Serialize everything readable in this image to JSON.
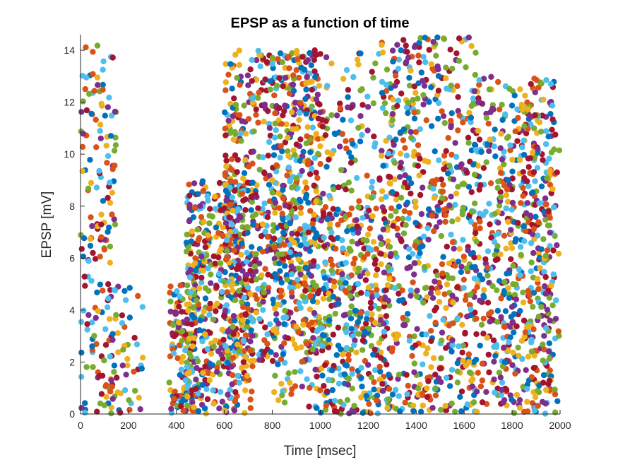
{
  "chart_data": {
    "type": "scatter",
    "title": "EPSP as a function of time",
    "xlabel": "Time [msec]",
    "ylabel": "EPSP [mV]",
    "xlim": [
      0,
      2000
    ],
    "ylim": [
      0,
      14.6
    ],
    "xticks": [
      0,
      200,
      400,
      600,
      800,
      1000,
      1200,
      1400,
      1600,
      1800,
      2000
    ],
    "yticks": [
      0,
      2,
      4,
      6,
      8,
      10,
      12,
      14
    ],
    "grid": false,
    "legend": "none",
    "series_colors": [
      "#0072BD",
      "#D95319",
      "#EDB120",
      "#7E2F8E",
      "#77AC30",
      "#4DBEEE",
      "#A2142F"
    ],
    "density_profile": [
      {
        "x": [
          0,
          150
        ],
        "y": [
          0,
          14.2
        ],
        "weight": 0.05
      },
      {
        "x": [
          120,
          260
        ],
        "y": [
          0,
          5
        ],
        "weight": 0.015
      },
      {
        "x": [
          370,
          480
        ],
        "y": [
          0,
          5
        ],
        "weight": 0.04
      },
      {
        "x": [
          440,
          720
        ],
        "y": [
          0,
          9
        ],
        "weight": 0.14
      },
      {
        "x": [
          600,
          1000
        ],
        "y": [
          2,
          14
        ],
        "weight": 0.2
      },
      {
        "x": [
          800,
          1250
        ],
        "y": [
          0,
          14
        ],
        "weight": 0.12
      },
      {
        "x": [
          1000,
          1300
        ],
        "y": [
          0,
          8
        ],
        "weight": 0.07
      },
      {
        "x": [
          1250,
          1650
        ],
        "y": [
          0,
          14.5
        ],
        "weight": 0.19
      },
      {
        "x": [
          1640,
          1980
        ],
        "y": [
          0,
          13
        ],
        "weight": 0.13
      },
      {
        "x": [
          1750,
          2000
        ],
        "y": [
          0,
          12
        ],
        "weight": 0.05
      }
    ],
    "point_count": 3600
  }
}
